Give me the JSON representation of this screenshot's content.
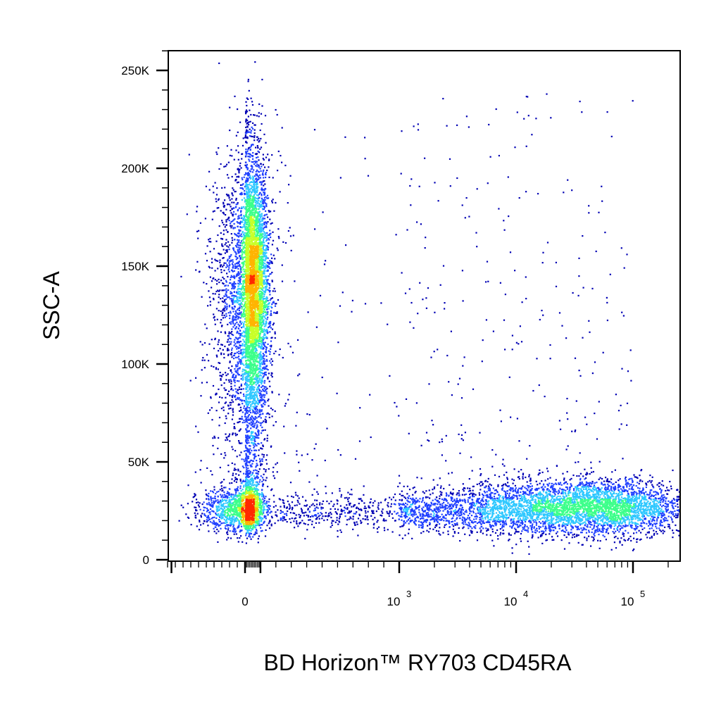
{
  "chart_data": {
    "type": "scatter",
    "style": "flow-cytometry-pseudocolor-density",
    "xlabel": "BD Horizon™ RY703 CD45RA",
    "ylabel": "SSC-A",
    "x_scale": "biexponential",
    "y_scale": "linear",
    "xlim": [
      -200,
      200000
    ],
    "ylim": [
      0,
      262144
    ],
    "grid": false,
    "legend": "none",
    "x_ticks": [
      {
        "label": "0",
        "value": 0
      },
      {
        "label": "10",
        "exp": "3",
        "value": 1000
      },
      {
        "label": "10",
        "exp": "4",
        "value": 10000
      },
      {
        "label": "10",
        "exp": "5",
        "value": 100000
      }
    ],
    "y_ticks": [
      {
        "label": "0",
        "value": 0
      },
      {
        "label": "50K",
        "value": 50000
      },
      {
        "label": "100K",
        "value": 100000
      },
      {
        "label": "150K",
        "value": 150000
      },
      {
        "label": "200K",
        "value": 200000
      },
      {
        "label": "250K",
        "value": 250000
      }
    ],
    "populations": [
      {
        "x_center": 40,
        "x_spread": 0.18,
        "y_center": 140000,
        "y_spread": 32000,
        "events": 5200
      },
      {
        "x_center": 0,
        "x_spread": 0.2,
        "y_center": 26000,
        "y_spread": 6000,
        "events": 1600
      },
      {
        "x_center": 60000,
        "x_spread": 0.35,
        "y_center": 27000,
        "y_spread": 7000,
        "events": 2600
      },
      {
        "x_center": 12000,
        "x_spread": 0.35,
        "y_center": 27000,
        "y_spread": 7000,
        "events": 1400
      },
      {
        "x_center": 1500,
        "x_spread": 0.45,
        "y_center": 25000,
        "y_spread": 5000,
        "events": 1100
      }
    ],
    "density_colors": [
      "#0000b4",
      "#1f3fff",
      "#2fc8ff",
      "#3cff8a",
      "#c8ff28",
      "#ffb400",
      "#ff2800"
    ]
  }
}
